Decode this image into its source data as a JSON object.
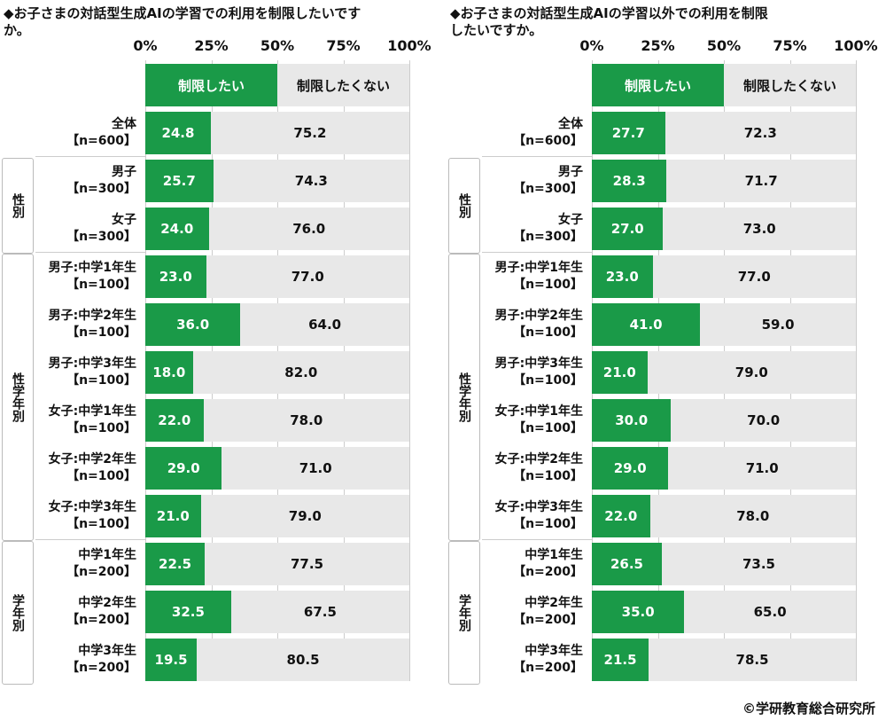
{
  "chart_data": [
    {
      "type": "bar",
      "stacked": true,
      "orientation": "horizontal",
      "title": "◆お子さまの対話型生成AIの学習での利用を制限したいですか。",
      "xlim": [
        0,
        100
      ],
      "ticks": [
        "0%",
        "25%",
        "50%",
        "75%",
        "100%"
      ],
      "legend": [
        "制限したい",
        "制限したくない"
      ],
      "categories": [
        [
          "全体",
          "【n=600】"
        ],
        [
          "男子",
          "【n=300】"
        ],
        [
          "女子",
          "【n=300】"
        ],
        [
          "男子:中学1年生",
          "【n=100】"
        ],
        [
          "男子:中学2年生",
          "【n=100】"
        ],
        [
          "男子:中学3年生",
          "【n=100】"
        ],
        [
          "女子:中学1年生",
          "【n=100】"
        ],
        [
          "女子:中学2年生",
          "【n=100】"
        ],
        [
          "女子:中学3年生",
          "【n=100】"
        ],
        [
          "中学1年生",
          "【n=200】"
        ],
        [
          "中学2年生",
          "【n=200】"
        ],
        [
          "中学3年生",
          "【n=200】"
        ]
      ],
      "series": [
        {
          "name": "制限したい",
          "values": [
            "24.8",
            "25.7",
            "24.0",
            "23.0",
            "36.0",
            "18.0",
            "22.0",
            "29.0",
            "21.0",
            "22.5",
            "32.5",
            "19.5"
          ]
        },
        {
          "name": "制限したくない",
          "values": [
            "75.2",
            "74.3",
            "76.0",
            "77.0",
            "64.0",
            "82.0",
            "78.0",
            "71.0",
            "79.0",
            "77.5",
            "67.5",
            "80.5"
          ]
        }
      ],
      "groups": [
        {
          "label": "性別",
          "from": 1,
          "to": 2
        },
        {
          "label": "性学年別",
          "from": 3,
          "to": 8
        },
        {
          "label": "学年別",
          "from": 9,
          "to": 11
        }
      ]
    },
    {
      "type": "bar",
      "stacked": true,
      "orientation": "horizontal",
      "title": "◆お子さまの対話型生成AIの学習以外での利用を制限\nしたいですか。",
      "xlim": [
        0,
        100
      ],
      "ticks": [
        "0%",
        "25%",
        "50%",
        "75%",
        "100%"
      ],
      "legend": [
        "制限したい",
        "制限したくない"
      ],
      "categories": [
        [
          "全体",
          "【n=600】"
        ],
        [
          "男子",
          "【n=300】"
        ],
        [
          "女子",
          "【n=300】"
        ],
        [
          "男子:中学1年生",
          "【n=100】"
        ],
        [
          "男子:中学2年生",
          "【n=100】"
        ],
        [
          "男子:中学3年生",
          "【n=100】"
        ],
        [
          "女子:中学1年生",
          "【n=100】"
        ],
        [
          "女子:中学2年生",
          "【n=100】"
        ],
        [
          "女子:中学3年生",
          "【n=100】"
        ],
        [
          "中学1年生",
          "【n=200】"
        ],
        [
          "中学2年生",
          "【n=200】"
        ],
        [
          "中学3年生",
          "【n=200】"
        ]
      ],
      "series": [
        {
          "name": "制限したい",
          "values": [
            "27.7",
            "28.3",
            "27.0",
            "23.0",
            "41.0",
            "21.0",
            "30.0",
            "29.0",
            "22.0",
            "26.5",
            "35.0",
            "21.5"
          ]
        },
        {
          "name": "制限したくない",
          "values": [
            "72.3",
            "71.7",
            "73.0",
            "77.0",
            "59.0",
            "79.0",
            "70.0",
            "71.0",
            "78.0",
            "73.5",
            "65.0",
            "78.5"
          ]
        }
      ],
      "groups": [
        {
          "label": "性別",
          "from": 1,
          "to": 2
        },
        {
          "label": "性学年別",
          "from": 3,
          "to": 8
        },
        {
          "label": "学年別",
          "from": 9,
          "to": 11
        }
      ]
    }
  ],
  "copyright": "©学研教育総合研究所",
  "colors": {
    "yes": "#1a9a48",
    "no": "#e8e8e8"
  }
}
